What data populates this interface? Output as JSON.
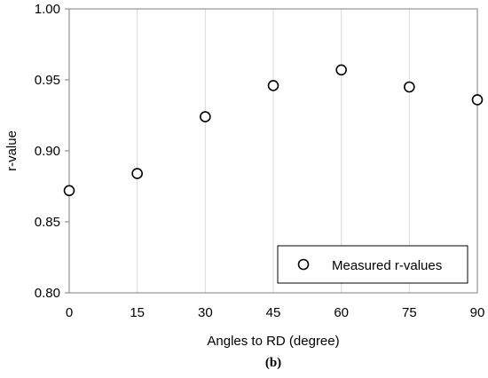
{
  "chart_data": {
    "type": "scatter",
    "title": "",
    "xlabel": "Angles to RD (degree)",
    "ylabel": "r-value",
    "xlim": [
      0,
      90
    ],
    "ylim": [
      0.8,
      1.0
    ],
    "x_ticks": [
      "0",
      "15",
      "30",
      "45",
      "60",
      "75",
      "90"
    ],
    "y_ticks": [
      "0.80",
      "0.85",
      "0.90",
      "0.95",
      "1.00"
    ],
    "grid": "vertical",
    "legend_position": "bottom-right",
    "series": [
      {
        "name": "Measured r-values",
        "marker": "open-circle",
        "color": "#000000",
        "points": [
          {
            "x": 0,
            "y": 0.872
          },
          {
            "x": 15,
            "y": 0.884
          },
          {
            "x": 30,
            "y": 0.924
          },
          {
            "x": 45,
            "y": 0.946
          },
          {
            "x": 60,
            "y": 0.957
          },
          {
            "x": 75,
            "y": 0.945
          },
          {
            "x": 90,
            "y": 0.936
          }
        ]
      }
    ]
  },
  "caption": "(b)"
}
